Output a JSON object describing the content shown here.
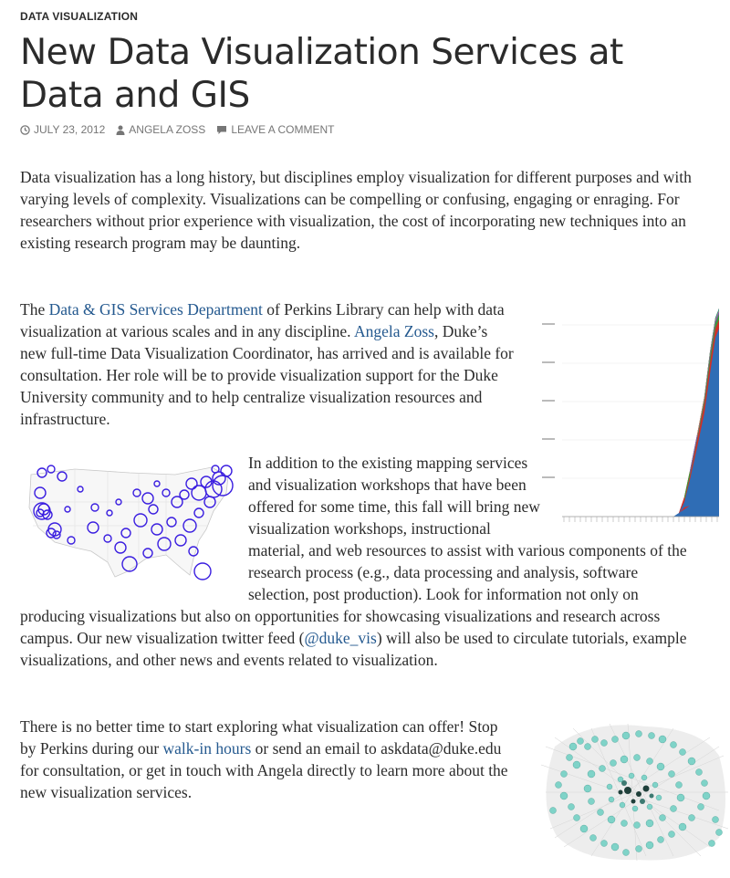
{
  "category": "DATA VISUALIZATION",
  "title": "New Data Visualization Services at Data and GIS",
  "meta": {
    "date": "JULY 23, 2012",
    "author": "ANGELA ZOSS",
    "comment": "LEAVE A COMMENT",
    "icons": [
      "clock-icon",
      "user-icon",
      "comment-icon"
    ]
  },
  "paragraphs": {
    "p1": "Data visualization has a long history, but disciplines employ visualization for different purposes and with varying levels of complexity.  Visualizations can be compelling or confusing, engaging or enraging.  For researchers without prior experience with visualization, the cost of incorporating new techniques into an existing research program may be daunting.",
    "p2": {
      "t1": "The ",
      "link1": "Data & GIS Services Department",
      "t2": " of Perkins Library can help with data visualization at various scales and in any discipline.  ",
      "link2": "Angela Zoss",
      "t3": ", Duke’s new full-time Data Visualization Coordinator, has arrived and is available for consultation.  Her role will be to provide visualization support for the Duke University community and to help centralize visualization resources and infrastructure."
    },
    "p3": {
      "t1": "In addition to the existing mapping services and visualization workshops that have been offered for some time, this fall will bring new visualization workshops, instructional material, and web resources to assist with various components of the research process (e.g., data processing and analysis, software selection, post production).  Look for information not only on producing visualizations but also on opportunities for showcasing visualizations and research across campus. Our new visualization twitter feed (",
      "link": "@duke_vis",
      "t2": ") will also be used to circulate tutorials, example visualizations, and other news and events related to visualization."
    },
    "p4": {
      "t1": "There is no better time to start exploring what visualization can offer!  Stop by Perkins during our ",
      "link": "walk-in hours",
      "t2": " or send an email to askdata@duke.edu for consultation, or get in touch with Angela directly to learn more about the new visualization services."
    }
  },
  "colors": {
    "link": "#24598f",
    "text": "#2b2b2b",
    "meta": "#767676",
    "map_circles": "#3a1ee0",
    "network_nodes": "#7fd3c8"
  }
}
